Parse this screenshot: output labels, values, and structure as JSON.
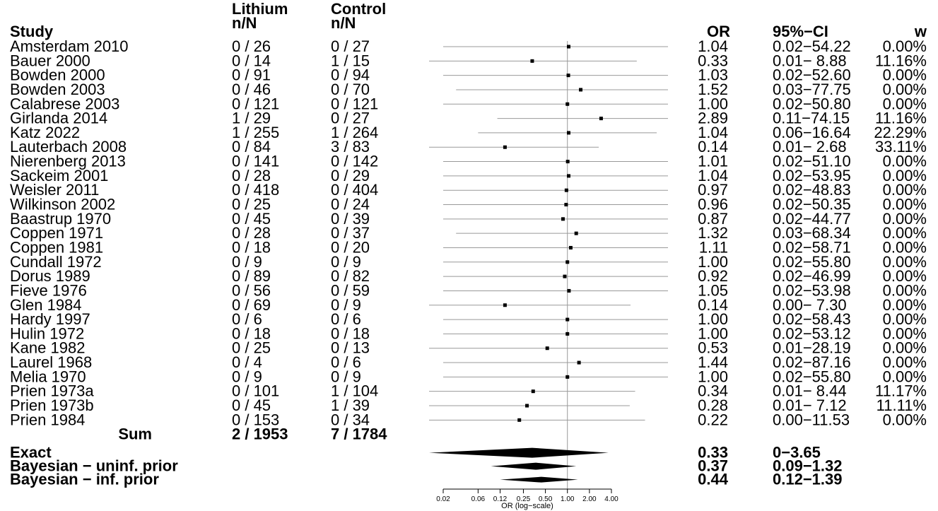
{
  "header": {
    "title": "",
    "study_label": "Study",
    "group1_line1": "Lithium",
    "group1_line2": "n/N",
    "group2_line1": "Control",
    "group2_line2": "n/N",
    "or_label": "OR",
    "ci_label": "95%−CI",
    "weight_label": "w"
  },
  "chart_data": {
    "type": "forest",
    "axis": {
      "label": "OR (log−scale)",
      "scale": "log",
      "ticks": [
        0.02,
        0.06,
        0.12,
        0.25,
        0.5,
        1,
        2,
        4
      ],
      "tick_labels": [
        "0.02",
        "0.06",
        "0.12",
        "0.25",
        "0.50",
        "1.00",
        "2.00",
        "4.00"
      ],
      "reference_line": 1
    },
    "studies": [
      {
        "study": "Amsterdam 2010",
        "g1": "0 / 26",
        "g2": "0 / 27",
        "or": 1.04,
        "ci_low": 0.02,
        "ci_high": 54.22,
        "or_text": "1.04",
        "ci_text": "0.02−54.22",
        "w": "0.00%"
      },
      {
        "study": "Bauer 2000",
        "g1": "0 / 14",
        "g2": "1 / 15",
        "or": 0.33,
        "ci_low": 0.01,
        "ci_high": 8.88,
        "or_text": "0.33",
        "ci_text": "0.01− 8.88",
        "w": "11.16%"
      },
      {
        "study": "Bowden 2000",
        "g1": "0 / 91",
        "g2": "0 / 94",
        "or": 1.03,
        "ci_low": 0.02,
        "ci_high": 52.6,
        "or_text": "1.03",
        "ci_text": "0.02−52.60",
        "w": "0.00%"
      },
      {
        "study": "Bowden 2003",
        "g1": "0 / 46",
        "g2": "0 / 70",
        "or": 1.52,
        "ci_low": 0.03,
        "ci_high": 77.75,
        "or_text": "1.52",
        "ci_text": "0.03−77.75",
        "w": "0.00%"
      },
      {
        "study": "Calabrese 2003",
        "g1": "0 / 121",
        "g2": "0 / 121",
        "or": 1.0,
        "ci_low": 0.02,
        "ci_high": 50.8,
        "or_text": "1.00",
        "ci_text": "0.02−50.80",
        "w": "0.00%"
      },
      {
        "study": "Girlanda 2014",
        "g1": "1 / 29",
        "g2": "0 / 27",
        "or": 2.89,
        "ci_low": 0.11,
        "ci_high": 74.15,
        "or_text": "2.89",
        "ci_text": "0.11−74.15",
        "w": "11.16%"
      },
      {
        "study": "Katz 2022",
        "g1": "1 / 255",
        "g2": "1 / 264",
        "or": 1.04,
        "ci_low": 0.06,
        "ci_high": 16.64,
        "or_text": "1.04",
        "ci_text": "0.06−16.64",
        "w": "22.29%"
      },
      {
        "study": "Lauterbach 2008",
        "g1": "0 / 84",
        "g2": "3 / 83",
        "or": 0.14,
        "ci_low": 0.01,
        "ci_high": 2.68,
        "or_text": "0.14",
        "ci_text": "0.01− 2.68",
        "w": "33.11%"
      },
      {
        "study": "Nierenberg 2013",
        "g1": "0 / 141",
        "g2": "0 / 142",
        "or": 1.01,
        "ci_low": 0.02,
        "ci_high": 51.1,
        "or_text": "1.01",
        "ci_text": "0.02−51.10",
        "w": "0.00%"
      },
      {
        "study": "Sackeim 2001",
        "g1": "0 / 28",
        "g2": "0 / 29",
        "or": 1.04,
        "ci_low": 0.02,
        "ci_high": 53.95,
        "or_text": "1.04",
        "ci_text": "0.02−53.95",
        "w": "0.00%"
      },
      {
        "study": "Weisler 2011",
        "g1": "0 / 418",
        "g2": "0 / 404",
        "or": 0.97,
        "ci_low": 0.02,
        "ci_high": 48.83,
        "or_text": "0.97",
        "ci_text": "0.02−48.83",
        "w": "0.00%"
      },
      {
        "study": "Wilkinson 2002",
        "g1": "0 / 25",
        "g2": "0 / 24",
        "or": 0.96,
        "ci_low": 0.02,
        "ci_high": 50.35,
        "or_text": "0.96",
        "ci_text": "0.02−50.35",
        "w": "0.00%"
      },
      {
        "study": "Baastrup 1970",
        "g1": "0 / 45",
        "g2": "0 / 39",
        "or": 0.87,
        "ci_low": 0.02,
        "ci_high": 44.77,
        "or_text": "0.87",
        "ci_text": "0.02−44.77",
        "w": "0.00%"
      },
      {
        "study": "Coppen 1971",
        "g1": "0 / 28",
        "g2": "0 / 37",
        "or": 1.32,
        "ci_low": 0.03,
        "ci_high": 68.34,
        "or_text": "1.32",
        "ci_text": "0.03−68.34",
        "w": "0.00%"
      },
      {
        "study": "Coppen 1981",
        "g1": "0 / 18",
        "g2": "0 / 20",
        "or": 1.11,
        "ci_low": 0.02,
        "ci_high": 58.71,
        "or_text": "1.11",
        "ci_text": "0.02−58.71",
        "w": "0.00%"
      },
      {
        "study": "Cundall 1972",
        "g1": "0 / 9",
        "g2": "0 / 9",
        "or": 1.0,
        "ci_low": 0.02,
        "ci_high": 55.8,
        "or_text": "1.00",
        "ci_text": "0.02−55.80",
        "w": "0.00%"
      },
      {
        "study": "Dorus 1989",
        "g1": "0 / 89",
        "g2": "0 / 82",
        "or": 0.92,
        "ci_low": 0.02,
        "ci_high": 46.99,
        "or_text": "0.92",
        "ci_text": "0.02−46.99",
        "w": "0.00%"
      },
      {
        "study": "Fieve 1976",
        "g1": "0 / 56",
        "g2": "0 / 59",
        "or": 1.05,
        "ci_low": 0.02,
        "ci_high": 53.98,
        "or_text": "1.05",
        "ci_text": "0.02−53.98",
        "w": "0.00%"
      },
      {
        "study": "Glen 1984",
        "g1": "0 / 69",
        "g2": "0 / 9",
        "or": 0.14,
        "ci_low": 0.005,
        "ci_high": 7.3,
        "or_text": "0.14",
        "ci_text": "0.00− 7.30",
        "w": "0.00%"
      },
      {
        "study": "Hardy 1997",
        "g1": "0 / 6",
        "g2": "0 / 6",
        "or": 1.0,
        "ci_low": 0.02,
        "ci_high": 58.43,
        "or_text": "1.00",
        "ci_text": "0.02−58.43",
        "w": "0.00%"
      },
      {
        "study": "Hulin 1972",
        "g1": "0 / 18",
        "g2": "0 / 18",
        "or": 1.0,
        "ci_low": 0.02,
        "ci_high": 53.12,
        "or_text": "1.00",
        "ci_text": "0.02−53.12",
        "w": "0.00%"
      },
      {
        "study": "Kane 1982",
        "g1": "0 / 25",
        "g2": "0 / 13",
        "or": 0.53,
        "ci_low": 0.01,
        "ci_high": 28.19,
        "or_text": "0.53",
        "ci_text": "0.01−28.19",
        "w": "0.00%"
      },
      {
        "study": "Laurel 1968",
        "g1": "0 / 4",
        "g2": "0 / 6",
        "or": 1.44,
        "ci_low": 0.02,
        "ci_high": 87.16,
        "or_text": "1.44",
        "ci_text": "0.02−87.16",
        "w": "0.00%"
      },
      {
        "study": "Melia 1970",
        "g1": "0 / 9",
        "g2": "0 / 9",
        "or": 1.0,
        "ci_low": 0.02,
        "ci_high": 55.8,
        "or_text": "1.00",
        "ci_text": "0.02−55.80",
        "w": "0.00%"
      },
      {
        "study": "Prien 1973a",
        "g1": "0 / 101",
        "g2": "1 / 104",
        "or": 0.34,
        "ci_low": 0.01,
        "ci_high": 8.44,
        "or_text": "0.34",
        "ci_text": "0.01− 8.44",
        "w": "11.17%"
      },
      {
        "study": "Prien 1973b",
        "g1": "0 / 45",
        "g2": "1 / 39",
        "or": 0.28,
        "ci_low": 0.01,
        "ci_high": 7.12,
        "or_text": "0.28",
        "ci_text": "0.01− 7.12",
        "w": "11.11%"
      },
      {
        "study": "Prien 1984",
        "g1": "0 / 153",
        "g2": "0 / 34",
        "or": 0.22,
        "ci_low": 0.004,
        "ci_high": 11.53,
        "or_text": "0.22",
        "ci_text": "0.00−11.53",
        "w": "0.00%"
      }
    ],
    "sum": {
      "label": "Sum",
      "g1": "2 / 1953",
      "g2": "7 / 1784"
    },
    "pooled": [
      {
        "label": "Exact",
        "or": 0.33,
        "ci_low": 0.003,
        "ci_high": 3.65,
        "or_text": "0.33",
        "ci_text": "0−3.65"
      },
      {
        "label": "Bayesian − uninf. prior",
        "or": 0.37,
        "ci_low": 0.09,
        "ci_high": 1.32,
        "or_text": "0.37",
        "ci_text": "0.09−1.32"
      },
      {
        "label": "Bayesian − inf. prior",
        "or": 0.44,
        "ci_low": 0.12,
        "ci_high": 1.39,
        "or_text": "0.44",
        "ci_text": "0.12−1.39"
      }
    ],
    "colors": {
      "line": "#999999",
      "point": "#000000",
      "text": "#000000"
    }
  }
}
